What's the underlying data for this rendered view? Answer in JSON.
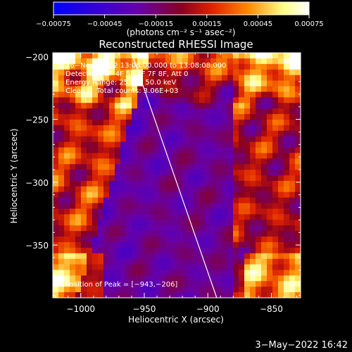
{
  "chart_data": {
    "type": "heatmap",
    "title": "Reconstructed RHESSI Image",
    "xlabel": "Heliocentric X (arcsec)",
    "ylabel": "Heliocentric Y (arcsec)",
    "xlim": [
      -1022,
      -827
    ],
    "ylim": [
      -392,
      -197
    ],
    "xticks": [
      -1000,
      -950,
      -900,
      -850
    ],
    "xtick_labels": [
      "−1000",
      "−950",
      "−900",
      "−850"
    ],
    "yticks": [
      -200,
      -250,
      -300,
      -350
    ],
    "ytick_labels": [
      "−200",
      "−250",
      "−300",
      "−350"
    ],
    "colorbar": {
      "min": -0.00075,
      "max": 0.00075,
      "ticks": [
        -0.00075,
        -0.00045,
        -0.00015,
        0.00015,
        0.00045,
        0.00075
      ],
      "tick_labels": [
        "−0.00075",
        "−0.00045",
        "−0.00015",
        "0.00015",
        "0.00045",
        "0.00075"
      ],
      "unit_label": "(photons cm⁻² s⁻¹ asec⁻²)",
      "colors": [
        "#0000ff",
        "#6600aa",
        "#880022",
        "#dd2200",
        "#ff8800",
        "#ffff88",
        "#ffffff"
      ]
    },
    "annotations": [
      "26−Nov−2002 13:08:00.000 to 13:08:08.000",
      "Detectors: 3F 4F 5F 6F 7F 8F, Att 0",
      "Energy Range: 25.0 − 50.0 keV",
      "Clean     Total counts: 3.06E+03"
    ],
    "peak_label": "Position of Peak = [−943,−206]",
    "limb_line": {
      "x": [
        -960,
        -893
      ],
      "y": [
        -197,
        -392
      ]
    }
  },
  "footer": {
    "timestamp": "3−May−2022 16:42"
  }
}
